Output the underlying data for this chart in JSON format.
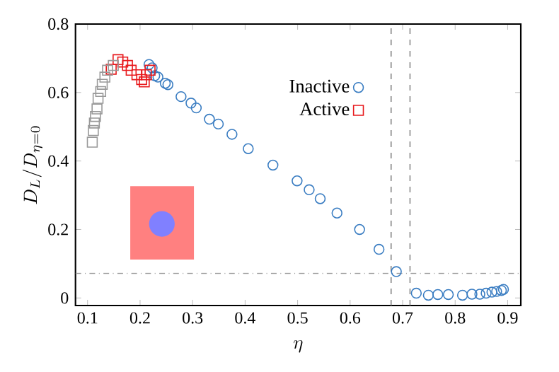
{
  "chart_data": {
    "type": "scatter",
    "xlabel": "\\eta",
    "ylabel": "D_L/D_{\\eta=0}",
    "xlim": [
      0.077,
      0.925
    ],
    "ylim": [
      -0.022,
      0.8
    ],
    "xticks": [
      0.1,
      0.2,
      0.3,
      0.4,
      0.5,
      0.6,
      0.7,
      0.8,
      0.9
    ],
    "yticks": [
      0,
      0.2,
      0.4,
      0.6,
      0.8
    ],
    "legend": "top right",
    "grid": false,
    "ref_lines": [
      {
        "axis": "y",
        "value": 0.072,
        "color": "#999999",
        "line_style": "dashdot"
      },
      {
        "axis": "x",
        "value": 0.678,
        "color": "#808080",
        "line_style": "dashed"
      },
      {
        "axis": "x",
        "value": 0.714,
        "color": "#808080",
        "line_style": "dashed"
      }
    ],
    "series": [
      {
        "name": "Inactive",
        "color": "#3a7dc2",
        "marker": "circle",
        "x": [
          0.217,
          0.223,
          0.228,
          0.234,
          0.248,
          0.253,
          0.278,
          0.297,
          0.307,
          0.332,
          0.349,
          0.375,
          0.406,
          0.453,
          0.499,
          0.522,
          0.543,
          0.575,
          0.618,
          0.655,
          0.688,
          0.726,
          0.749,
          0.767,
          0.787,
          0.814,
          0.832,
          0.847,
          0.859,
          0.87,
          0.879,
          0.888,
          0.892
        ],
        "values": [
          0.682,
          0.672,
          0.649,
          0.645,
          0.627,
          0.623,
          0.588,
          0.569,
          0.555,
          0.522,
          0.508,
          0.478,
          0.436,
          0.388,
          0.342,
          0.316,
          0.29,
          0.248,
          0.2,
          0.142,
          0.077,
          0.014,
          0.008,
          0.01,
          0.01,
          0.008,
          0.011,
          0.011,
          0.014,
          0.017,
          0.019,
          0.022,
          0.025
        ]
      },
      {
        "name": "Active",
        "color": "#e8191c",
        "marker": "square",
        "x": [
          0.145,
          0.158,
          0.167,
          0.176,
          0.183,
          0.194,
          0.203,
          0.212,
          0.219,
          0.208
        ],
        "values": [
          0.668,
          0.696,
          0.689,
          0.679,
          0.665,
          0.652,
          0.638,
          0.652,
          0.665,
          0.631
        ]
      },
      {
        "color": "#999999",
        "marker": "square",
        "x": [
          0.109,
          0.111,
          0.113,
          0.115,
          0.118,
          0.12,
          0.125,
          0.128,
          0.133,
          0.138,
          0.149
        ],
        "values": [
          0.455,
          0.489,
          0.511,
          0.53,
          0.552,
          0.583,
          0.603,
          0.624,
          0.645,
          0.665,
          0.679
        ]
      }
    ]
  }
}
